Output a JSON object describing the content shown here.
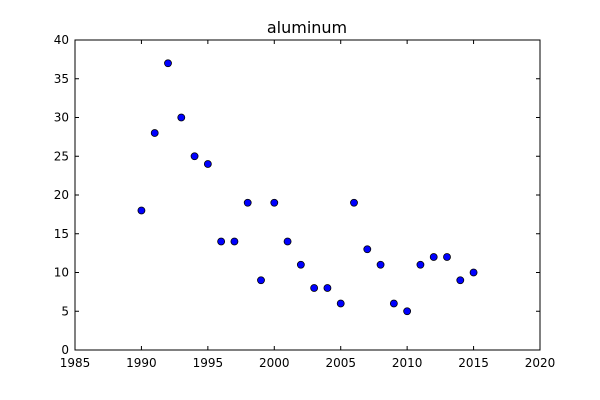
{
  "chart_data": {
    "type": "scatter",
    "title": "aluminum",
    "xlabel": "",
    "ylabel": "",
    "xlim": [
      1985,
      2020
    ],
    "ylim": [
      0,
      40
    ],
    "xticks": [
      1985,
      1990,
      1995,
      2000,
      2005,
      2010,
      2015,
      2020
    ],
    "yticks": [
      0,
      5,
      10,
      15,
      20,
      25,
      30,
      35,
      40
    ],
    "grid": false,
    "legend": "none",
    "marker_color": "#0000ff",
    "marker_edge_color": "#000000",
    "points": [
      {
        "x": 1990,
        "y": 18
      },
      {
        "x": 1991,
        "y": 28
      },
      {
        "x": 1992,
        "y": 37
      },
      {
        "x": 1993,
        "y": 30
      },
      {
        "x": 1994,
        "y": 25
      },
      {
        "x": 1995,
        "y": 24
      },
      {
        "x": 1996,
        "y": 14
      },
      {
        "x": 1997,
        "y": 14
      },
      {
        "x": 1998,
        "y": 19
      },
      {
        "x": 1999,
        "y": 9
      },
      {
        "x": 2000,
        "y": 19
      },
      {
        "x": 2001,
        "y": 14
      },
      {
        "x": 2002,
        "y": 11
      },
      {
        "x": 2003,
        "y": 8
      },
      {
        "x": 2004,
        "y": 8
      },
      {
        "x": 2005,
        "y": 6
      },
      {
        "x": 2006,
        "y": 19
      },
      {
        "x": 2007,
        "y": 13
      },
      {
        "x": 2008,
        "y": 11
      },
      {
        "x": 2009,
        "y": 6
      },
      {
        "x": 2010,
        "y": 5
      },
      {
        "x": 2011,
        "y": 11
      },
      {
        "x": 2012,
        "y": 12
      },
      {
        "x": 2013,
        "y": 12
      },
      {
        "x": 2014,
        "y": 9
      },
      {
        "x": 2015,
        "y": 10
      }
    ]
  }
}
